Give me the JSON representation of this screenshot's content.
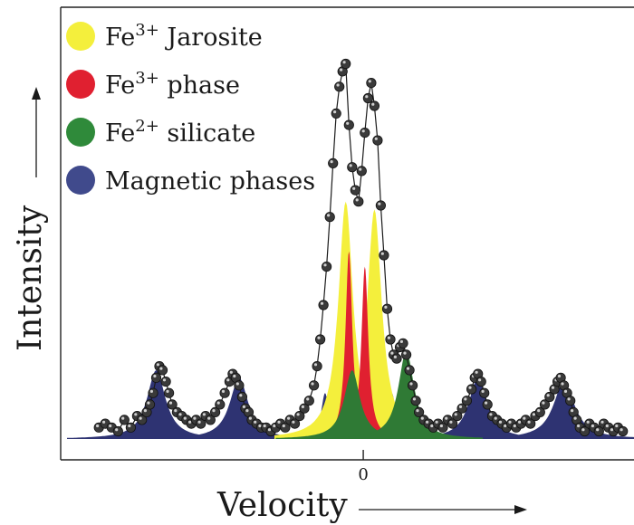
{
  "chart_data": {
    "type": "area",
    "title": "",
    "xlabel": "Velocity",
    "ylabel": "Intensity",
    "x_ticks": [
      {
        "value": 0,
        "label": "0"
      }
    ],
    "xlim": [
      -9.5,
      8.5
    ],
    "ylim": [
      0,
      1
    ],
    "grid": false,
    "legend_position": "top-left",
    "legend": [
      {
        "ion": "Fe",
        "charge": "3+",
        "suffix": " Jarosite",
        "color": "#f4ef3c",
        "icon": "yellow-disc"
      },
      {
        "ion": "Fe",
        "charge": "3+",
        "suffix": " phase",
        "color": "#e02030",
        "icon": "red-disc"
      },
      {
        "ion": "Fe",
        "charge": "2+",
        "suffix": " silicate",
        "color": "#2f8a3a",
        "icon": "green-disc"
      },
      {
        "ion": "",
        "charge": "",
        "suffix": "Magnetic phases",
        "color": "#404a8c",
        "icon": "blue-disc"
      }
    ],
    "series": [
      {
        "name": "Magnetic phases",
        "color": "#2e3372",
        "components": [
          {
            "center": -6.5,
            "height": 0.18,
            "width": 0.35
          },
          {
            "center": -3.9,
            "height": 0.16,
            "width": 0.35
          },
          {
            "center": -1.2,
            "height": 0.12,
            "width": 0.15
          },
          {
            "center": 0.9,
            "height": 0.12,
            "width": 0.15
          },
          {
            "center": 3.6,
            "height": 0.16,
            "width": 0.35
          },
          {
            "center": 6.3,
            "height": 0.15,
            "width": 0.4
          }
        ]
      },
      {
        "name": "Fe3+ Jarosite",
        "color": "#f4ef3c",
        "components": [
          {
            "center": -0.55,
            "height": 0.62,
            "width": 0.28
          },
          {
            "center": 0.35,
            "height": 0.6,
            "width": 0.28
          }
        ]
      },
      {
        "name": "Fe3+ phase",
        "color": "#e02030",
        "components": [
          {
            "center": -0.45,
            "height": 0.49,
            "width": 0.13
          },
          {
            "center": 0.05,
            "height": 0.45,
            "width": 0.13
          }
        ]
      },
      {
        "name": "Fe2+ silicate",
        "color": "#2f7a35",
        "components": [
          {
            "center": -0.35,
            "height": 0.18,
            "width": 0.3
          },
          {
            "center": 1.35,
            "height": 0.23,
            "width": 0.3
          }
        ]
      }
    ],
    "points": {
      "color": "#3a3a3a",
      "x": [
        -8.3,
        -8.1,
        -7.9,
        -7.7,
        -7.5,
        -7.3,
        -7.1,
        -6.95,
        -6.8,
        -6.7,
        -6.6,
        -6.5,
        -6.4,
        -6.3,
        -6.2,
        -6.1,
        -6.0,
        -5.85,
        -5.7,
        -5.55,
        -5.4,
        -5.25,
        -5.1,
        -4.95,
        -4.8,
        -4.65,
        -4.5,
        -4.35,
        -4.2,
        -4.1,
        -4.0,
        -3.9,
        -3.8,
        -3.7,
        -3.6,
        -3.5,
        -3.35,
        -3.2,
        -3.05,
        -2.9,
        -2.75,
        -2.6,
        -2.45,
        -2.3,
        -2.15,
        -2.0,
        -1.85,
        -1.7,
        -1.55,
        -1.45,
        -1.35,
        -1.25,
        -1.15,
        -1.05,
        -0.95,
        -0.85,
        -0.75,
        -0.65,
        -0.55,
        -0.45,
        -0.35,
        -0.25,
        -0.15,
        -0.05,
        0.05,
        0.15,
        0.25,
        0.35,
        0.45,
        0.55,
        0.65,
        0.75,
        0.85,
        0.95,
        1.05,
        1.15,
        1.25,
        1.35,
        1.45,
        1.55,
        1.65,
        1.75,
        1.9,
        2.05,
        2.2,
        2.35,
        2.5,
        2.65,
        2.8,
        2.95,
        3.1,
        3.25,
        3.4,
        3.5,
        3.6,
        3.7,
        3.8,
        3.9,
        4.05,
        4.2,
        4.35,
        4.5,
        4.65,
        4.8,
        4.95,
        5.1,
        5.25,
        5.4,
        5.55,
        5.7,
        5.85,
        6.0,
        6.1,
        6.2,
        6.3,
        6.4,
        6.5,
        6.6,
        6.7,
        6.8,
        6.95,
        7.1,
        7.25,
        7.4,
        7.55,
        7.7,
        7.85,
        8.0,
        8.15
      ],
      "y": [
        0.03,
        0.04,
        0.03,
        0.02,
        0.05,
        0.03,
        0.06,
        0.05,
        0.07,
        0.09,
        0.12,
        0.16,
        0.19,
        0.18,
        0.15,
        0.12,
        0.09,
        0.07,
        0.06,
        0.05,
        0.04,
        0.05,
        0.04,
        0.06,
        0.05,
        0.07,
        0.09,
        0.12,
        0.15,
        0.17,
        0.16,
        0.14,
        0.11,
        0.08,
        0.07,
        0.05,
        0.04,
        0.03,
        0.03,
        0.02,
        0.03,
        0.04,
        0.03,
        0.05,
        0.04,
        0.06,
        0.08,
        0.1,
        0.14,
        0.19,
        0.26,
        0.35,
        0.45,
        0.58,
        0.72,
        0.85,
        0.92,
        0.96,
        0.98,
        0.82,
        0.71,
        0.65,
        0.62,
        0.7,
        0.8,
        0.89,
        0.93,
        0.87,
        0.78,
        0.61,
        0.48,
        0.34,
        0.26,
        0.22,
        0.21,
        0.24,
        0.25,
        0.22,
        0.18,
        0.14,
        0.1,
        0.07,
        0.05,
        0.04,
        0.03,
        0.04,
        0.03,
        0.05,
        0.04,
        0.06,
        0.08,
        0.1,
        0.13,
        0.16,
        0.17,
        0.15,
        0.12,
        0.09,
        0.06,
        0.05,
        0.04,
        0.03,
        0.04,
        0.03,
        0.04,
        0.05,
        0.04,
        0.06,
        0.07,
        0.09,
        0.11,
        0.13,
        0.15,
        0.16,
        0.14,
        0.12,
        0.1,
        0.07,
        0.05,
        0.03,
        0.02,
        0.04,
        0.03,
        0.02,
        0.04,
        0.03,
        0.02,
        0.03,
        0.02
      ]
    }
  }
}
